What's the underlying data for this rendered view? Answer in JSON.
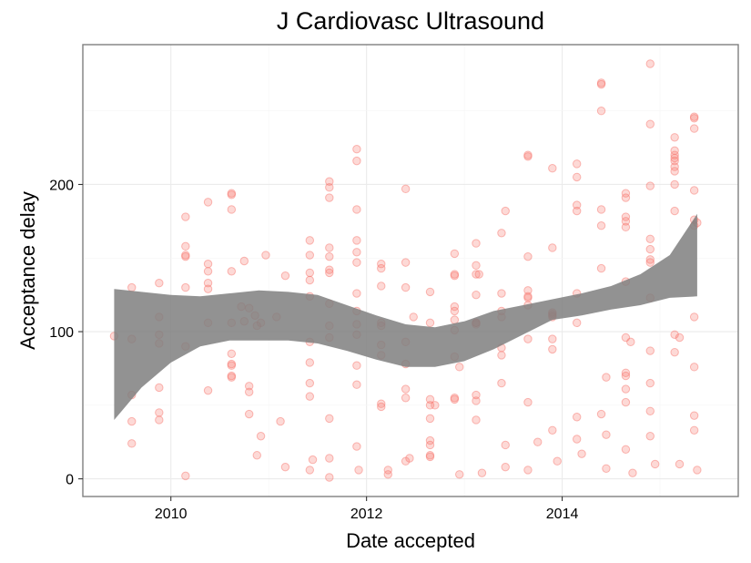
{
  "chart_data": {
    "type": "scatter",
    "title": "J Cardiovasc Ultrasound",
    "xlabel": "Date accepted",
    "ylabel": "Acceptance delay",
    "xlim": [
      2009.1,
      2015.8
    ],
    "ylim": [
      -12,
      295
    ],
    "x_ticks": [
      2010,
      2012,
      2014
    ],
    "x_tick_labels": [
      "2010",
      "2012",
      "2014"
    ],
    "y_ticks": [
      0,
      100,
      200
    ],
    "y_tick_labels": [
      "0",
      "100",
      "200"
    ],
    "grid": true,
    "point_color": "#f8766d",
    "smooth_color": "#7f7f7f",
    "points": [
      [
        2009.42,
        97
      ],
      [
        2009.6,
        130
      ],
      [
        2009.6,
        95
      ],
      [
        2009.6,
        57
      ],
      [
        2009.6,
        39
      ],
      [
        2009.6,
        24
      ],
      [
        2009.88,
        133
      ],
      [
        2009.88,
        110
      ],
      [
        2009.88,
        98
      ],
      [
        2009.88,
        92
      ],
      [
        2009.88,
        62
      ],
      [
        2009.88,
        45
      ],
      [
        2009.88,
        40
      ],
      [
        2010.15,
        178
      ],
      [
        2010.15,
        158
      ],
      [
        2010.15,
        152
      ],
      [
        2010.15,
        151
      ],
      [
        2010.15,
        130
      ],
      [
        2010.15,
        90
      ],
      [
        2010.15,
        2
      ],
      [
        2010.38,
        188
      ],
      [
        2010.38,
        146
      ],
      [
        2010.38,
        141
      ],
      [
        2010.38,
        133
      ],
      [
        2010.38,
        129
      ],
      [
        2010.38,
        106
      ],
      [
        2010.38,
        60
      ],
      [
        2010.62,
        194
      ],
      [
        2010.62,
        193
      ],
      [
        2010.62,
        183
      ],
      [
        2010.62,
        141
      ],
      [
        2010.62,
        106
      ],
      [
        2010.62,
        85
      ],
      [
        2010.62,
        78
      ],
      [
        2010.62,
        77
      ],
      [
        2010.62,
        70
      ],
      [
        2010.62,
        69
      ],
      [
        2010.72,
        117
      ],
      [
        2010.75,
        148
      ],
      [
        2010.75,
        107
      ],
      [
        2010.8,
        116
      ],
      [
        2010.8,
        63
      ],
      [
        2010.8,
        59
      ],
      [
        2010.8,
        44
      ],
      [
        2010.86,
        111
      ],
      [
        2010.88,
        104
      ],
      [
        2010.88,
        16
      ],
      [
        2010.92,
        106
      ],
      [
        2010.92,
        29
      ],
      [
        2010.97,
        152
      ],
      [
        2011.08,
        110
      ],
      [
        2011.12,
        39
      ],
      [
        2011.17,
        138
      ],
      [
        2011.17,
        8
      ],
      [
        2011.42,
        162
      ],
      [
        2011.42,
        152
      ],
      [
        2011.42,
        140
      ],
      [
        2011.42,
        135
      ],
      [
        2011.42,
        124
      ],
      [
        2011.42,
        93
      ],
      [
        2011.42,
        79
      ],
      [
        2011.42,
        65
      ],
      [
        2011.42,
        56
      ],
      [
        2011.42,
        6
      ],
      [
        2011.45,
        13
      ],
      [
        2011.62,
        202
      ],
      [
        2011.62,
        198
      ],
      [
        2011.62,
        191
      ],
      [
        2011.62,
        157
      ],
      [
        2011.62,
        151
      ],
      [
        2011.62,
        142
      ],
      [
        2011.62,
        140
      ],
      [
        2011.62,
        119
      ],
      [
        2011.62,
        104
      ],
      [
        2011.62,
        96
      ],
      [
        2011.62,
        41
      ],
      [
        2011.62,
        14
      ],
      [
        2011.62,
        1
      ],
      [
        2011.9,
        224
      ],
      [
        2011.9,
        216
      ],
      [
        2011.9,
        183
      ],
      [
        2011.9,
        162
      ],
      [
        2011.9,
        154
      ],
      [
        2011.9,
        147
      ],
      [
        2011.9,
        126
      ],
      [
        2011.9,
        114
      ],
      [
        2011.9,
        105
      ],
      [
        2011.9,
        98
      ],
      [
        2011.9,
        77
      ],
      [
        2011.9,
        64
      ],
      [
        2011.9,
        22
      ],
      [
        2011.92,
        6
      ],
      [
        2012.15,
        146
      ],
      [
        2012.15,
        143
      ],
      [
        2012.15,
        131
      ],
      [
        2012.15,
        106
      ],
      [
        2012.15,
        104
      ],
      [
        2012.15,
        91
      ],
      [
        2012.15,
        84
      ],
      [
        2012.15,
        51
      ],
      [
        2012.15,
        49
      ],
      [
        2012.22,
        3
      ],
      [
        2012.22,
        6
      ],
      [
        2012.4,
        197
      ],
      [
        2012.4,
        147
      ],
      [
        2012.4,
        130
      ],
      [
        2012.4,
        93
      ],
      [
        2012.4,
        78
      ],
      [
        2012.4,
        61
      ],
      [
        2012.4,
        55
      ],
      [
        2012.4,
        12
      ],
      [
        2012.44,
        14
      ],
      [
        2012.48,
        110
      ],
      [
        2012.65,
        127
      ],
      [
        2012.65,
        106
      ],
      [
        2012.65,
        54
      ],
      [
        2012.65,
        50
      ],
      [
        2012.65,
        41
      ],
      [
        2012.65,
        26
      ],
      [
        2012.65,
        23
      ],
      [
        2012.65,
        16
      ],
      [
        2012.65,
        15
      ],
      [
        2012.7,
        50
      ],
      [
        2012.9,
        153
      ],
      [
        2012.9,
        139
      ],
      [
        2012.9,
        138
      ],
      [
        2012.9,
        117
      ],
      [
        2012.9,
        114
      ],
      [
        2012.9,
        108
      ],
      [
        2012.9,
        101
      ],
      [
        2012.9,
        83
      ],
      [
        2012.9,
        55
      ],
      [
        2012.9,
        54
      ],
      [
        2012.95,
        76
      ],
      [
        2012.95,
        3
      ],
      [
        2013.12,
        160
      ],
      [
        2013.12,
        145
      ],
      [
        2013.12,
        139
      ],
      [
        2013.12,
        125
      ],
      [
        2013.12,
        106
      ],
      [
        2013.12,
        106
      ],
      [
        2013.12,
        105
      ],
      [
        2013.12,
        57
      ],
      [
        2013.12,
        53
      ],
      [
        2013.12,
        40
      ],
      [
        2013.15,
        139
      ],
      [
        2013.18,
        4
      ],
      [
        2013.38,
        167
      ],
      [
        2013.38,
        126
      ],
      [
        2013.38,
        114
      ],
      [
        2013.38,
        110
      ],
      [
        2013.38,
        89
      ],
      [
        2013.38,
        84
      ],
      [
        2013.38,
        65
      ],
      [
        2013.42,
        182
      ],
      [
        2013.42,
        23
      ],
      [
        2013.42,
        8
      ],
      [
        2013.65,
        220
      ],
      [
        2013.65,
        219
      ],
      [
        2013.65,
        151
      ],
      [
        2013.65,
        128
      ],
      [
        2013.65,
        124
      ],
      [
        2013.65,
        123
      ],
      [
        2013.65,
        118
      ],
      [
        2013.65,
        95
      ],
      [
        2013.65,
        52
      ],
      [
        2013.65,
        6
      ],
      [
        2013.75,
        25
      ],
      [
        2013.9,
        211
      ],
      [
        2013.9,
        157
      ],
      [
        2013.9,
        113
      ],
      [
        2013.9,
        112
      ],
      [
        2013.9,
        111
      ],
      [
        2013.9,
        110
      ],
      [
        2013.9,
        95
      ],
      [
        2013.9,
        88
      ],
      [
        2013.9,
        33
      ],
      [
        2013.95,
        12
      ],
      [
        2014.15,
        214
      ],
      [
        2014.15,
        205
      ],
      [
        2014.15,
        186
      ],
      [
        2014.15,
        182
      ],
      [
        2014.15,
        126
      ],
      [
        2014.15,
        106
      ],
      [
        2014.15,
        42
      ],
      [
        2014.15,
        27
      ],
      [
        2014.2,
        17
      ],
      [
        2014.4,
        269
      ],
      [
        2014.4,
        268
      ],
      [
        2014.4,
        250
      ],
      [
        2014.4,
        183
      ],
      [
        2014.4,
        172
      ],
      [
        2014.4,
        143
      ],
      [
        2014.4,
        44
      ],
      [
        2014.45,
        30
      ],
      [
        2014.45,
        7
      ],
      [
        2014.45,
        69
      ],
      [
        2014.65,
        194
      ],
      [
        2014.65,
        191
      ],
      [
        2014.65,
        178
      ],
      [
        2014.65,
        175
      ],
      [
        2014.65,
        171
      ],
      [
        2014.65,
        134
      ],
      [
        2014.65,
        96
      ],
      [
        2014.65,
        72
      ],
      [
        2014.65,
        70
      ],
      [
        2014.65,
        61
      ],
      [
        2014.65,
        52
      ],
      [
        2014.65,
        20
      ],
      [
        2014.7,
        93
      ],
      [
        2014.72,
        4
      ],
      [
        2014.9,
        282
      ],
      [
        2014.9,
        241
      ],
      [
        2014.9,
        199
      ],
      [
        2014.9,
        163
      ],
      [
        2014.9,
        156
      ],
      [
        2014.9,
        149
      ],
      [
        2014.9,
        147
      ],
      [
        2014.9,
        123
      ],
      [
        2014.9,
        87
      ],
      [
        2014.9,
        65
      ],
      [
        2014.9,
        46
      ],
      [
        2014.9,
        29
      ],
      [
        2014.95,
        10
      ],
      [
        2015.15,
        232
      ],
      [
        2015.15,
        223
      ],
      [
        2015.15,
        220
      ],
      [
        2015.15,
        218
      ],
      [
        2015.15,
        216
      ],
      [
        2015.15,
        212
      ],
      [
        2015.15,
        209
      ],
      [
        2015.15,
        200
      ],
      [
        2015.15,
        182
      ],
      [
        2015.15,
        98
      ],
      [
        2015.15,
        86
      ],
      [
        2015.2,
        96
      ],
      [
        2015.2,
        10
      ],
      [
        2015.35,
        246
      ],
      [
        2015.35,
        245
      ],
      [
        2015.35,
        238
      ],
      [
        2015.35,
        196
      ],
      [
        2015.35,
        176
      ],
      [
        2015.35,
        172
      ],
      [
        2015.35,
        110
      ],
      [
        2015.35,
        76
      ],
      [
        2015.35,
        43
      ],
      [
        2015.35,
        33
      ],
      [
        2015.38,
        6
      ],
      [
        2015.38,
        174
      ]
    ],
    "smooth": {
      "x": [
        2009.42,
        2009.7,
        2010.0,
        2010.3,
        2010.6,
        2010.9,
        2011.2,
        2011.5,
        2011.8,
        2012.1,
        2012.4,
        2012.7,
        2013.0,
        2013.3,
        2013.6,
        2013.9,
        2014.2,
        2014.5,
        2014.8,
        2015.1,
        2015.38
      ],
      "lower": [
        40,
        62,
        79,
        90,
        94,
        94,
        94,
        92,
        87,
        81,
        76,
        76,
        80,
        88,
        98,
        108,
        111,
        115,
        118,
        123,
        124
      ],
      "upper": [
        129,
        127,
        125,
        124,
        126,
        128,
        127,
        125,
        118,
        111,
        105,
        103,
        107,
        114,
        118,
        122,
        126,
        131,
        139,
        152,
        180
      ]
    }
  }
}
